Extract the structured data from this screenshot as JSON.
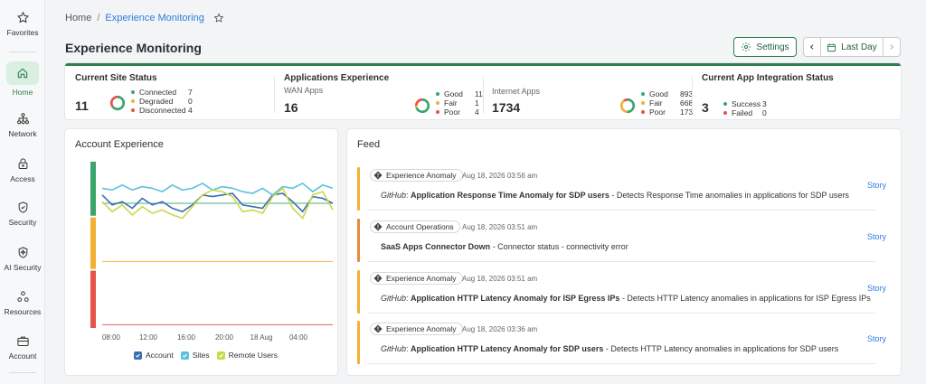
{
  "sidebar": {
    "items": [
      {
        "label": "Favorites",
        "icon": "star-icon"
      },
      {
        "label": "Home",
        "icon": "home-icon",
        "active": true
      },
      {
        "label": "Network",
        "icon": "network-icon"
      },
      {
        "label": "Access",
        "icon": "lock-icon"
      },
      {
        "label": "Security",
        "icon": "shield-icon"
      },
      {
        "label": "AI Security",
        "icon": "ai-shield-icon"
      },
      {
        "label": "Resources",
        "icon": "resources-icon"
      },
      {
        "label": "Account",
        "icon": "briefcase-icon"
      }
    ]
  },
  "breadcrumb": {
    "home": "Home",
    "separator": "/",
    "current": "Experience Monitoring"
  },
  "page": {
    "title": "Experience Monitoring"
  },
  "toolbar": {
    "settings_label": "Settings",
    "date_range_label": "Last Day"
  },
  "colors": {
    "accent": "#2e7d4f",
    "good": "#3aa56b",
    "fair": "#f2b134",
    "poor": "#e5534b",
    "link": "#2f7ae0"
  },
  "status": {
    "site": {
      "title": "Current Site Status",
      "total": "11",
      "rows": [
        {
          "label": "Connected",
          "value": "7",
          "color": "#3aa56b"
        },
        {
          "label": "Degraded",
          "value": "0",
          "color": "#f2b134"
        },
        {
          "label": "Disconnected",
          "value": "4",
          "color": "#e5534b"
        }
      ]
    },
    "apps": {
      "title": "Applications Experience",
      "wan": {
        "subtitle": "WAN Apps",
        "total": "16",
        "rows": [
          {
            "label": "Good",
            "value": "11",
            "color": "#3aa56b"
          },
          {
            "label": "Fair",
            "value": "1",
            "color": "#f2b134"
          },
          {
            "label": "Poor",
            "value": "4",
            "color": "#e5534b"
          }
        ]
      },
      "internet": {
        "subtitle": "Internet Apps",
        "total": "1734",
        "rows": [
          {
            "label": "Good",
            "value": "893",
            "color": "#3aa56b"
          },
          {
            "label": "Fair",
            "value": "668",
            "color": "#f2b134"
          },
          {
            "label": "Poor",
            "value": "173",
            "color": "#e5534b"
          }
        ]
      }
    },
    "integration": {
      "title": "Current App Integration Status",
      "total": "3",
      "rows": [
        {
          "label": "Success",
          "value": "3",
          "color": "#3aa56b"
        },
        {
          "label": "Failed",
          "value": "0",
          "color": "#e5534b"
        }
      ]
    }
  },
  "account_experience": {
    "title": "Account Experience",
    "legend": [
      {
        "label": "Account",
        "color": "#3b6db5"
      },
      {
        "label": "Sites",
        "color": "#5bc0de"
      },
      {
        "label": "Remote Users",
        "color": "#c9d94a"
      }
    ]
  },
  "chart_data": {
    "type": "line",
    "x_tick_labels": [
      "08:00",
      "12:00",
      "16:00",
      "20:00",
      "18 Aug",
      "04:00"
    ],
    "bands": [
      {
        "name": "good",
        "color": "#3aa56b"
      },
      {
        "name": "fair",
        "color": "#f2b134"
      },
      {
        "name": "poor",
        "color": "#e5534b"
      }
    ],
    "series": [
      {
        "name": "Account",
        "color": "#3b6db5",
        "values": [
          0.8,
          0.74,
          0.76,
          0.72,
          0.78,
          0.74,
          0.76,
          0.72,
          0.7,
          0.74,
          0.8,
          0.79,
          0.8,
          0.81,
          0.74,
          0.73,
          0.72,
          0.8,
          0.81,
          0.76,
          0.7,
          0.79,
          0.78,
          0.75
        ]
      },
      {
        "name": "Sites",
        "color": "#5bc0de",
        "values": [
          0.84,
          0.83,
          0.86,
          0.83,
          0.85,
          0.84,
          0.82,
          0.86,
          0.83,
          0.84,
          0.87,
          0.83,
          0.85,
          0.84,
          0.82,
          0.81,
          0.84,
          0.8,
          0.85,
          0.84,
          0.87,
          0.82,
          0.86,
          0.84
        ]
      },
      {
        "name": "Remote Users",
        "color": "#c9d94a",
        "values": [
          0.76,
          0.7,
          0.74,
          0.68,
          0.73,
          0.69,
          0.71,
          0.68,
          0.66,
          0.73,
          0.8,
          0.83,
          0.82,
          0.79,
          0.7,
          0.71,
          0.69,
          0.79,
          0.84,
          0.72,
          0.66,
          0.8,
          0.82,
          0.71
        ]
      }
    ],
    "reference_lines": [
      {
        "name": "good-threshold",
        "value": 0.75,
        "color": "#3aa56b"
      },
      {
        "name": "fair-threshold",
        "value": 0.4,
        "color": "#f2b134"
      },
      {
        "name": "poor-threshold",
        "value": 0.02,
        "color": "#e5534b"
      }
    ],
    "ylim": [
      0,
      1
    ]
  },
  "feed": {
    "title": "Feed",
    "story_label": "Story",
    "items": [
      {
        "tag": "Experience Anomaly",
        "time": "Aug 18, 2026 03:56 am",
        "app": "GitHub",
        "app_sep": ": ",
        "headline": "Application Response Time Anomaly for SDP users",
        "detail": " - Detects Response Time anomalies in applications for SDP users",
        "bar_color": "#f2b134"
      },
      {
        "tag": "Account Operations",
        "time": "Aug 18, 2026 03:51 am",
        "app": "",
        "app_sep": "",
        "headline": "SaaS Apps Connector Down",
        "detail": " - Connector status - connectivity error",
        "bar_color": "#e8893a"
      },
      {
        "tag": "Experience Anomaly",
        "time": "Aug 18, 2026 03:51 am",
        "app": "GitHub",
        "app_sep": ": ",
        "headline": "Application HTTP Latency Anomaly for ISP Egress IPs",
        "detail": " - Detects HTTP Latency anomalies in applications for ISP Egress IPs",
        "bar_color": "#f2b134"
      },
      {
        "tag": "Experience Anomaly",
        "time": "Aug 18, 2026 03:36 am",
        "app": "GitHub",
        "app_sep": ": ",
        "headline": "Application HTTP Latency Anomaly for SDP users",
        "detail": " - Detects HTTP Latency anomalies in applications for SDP users",
        "bar_color": "#f2b134"
      }
    ]
  }
}
